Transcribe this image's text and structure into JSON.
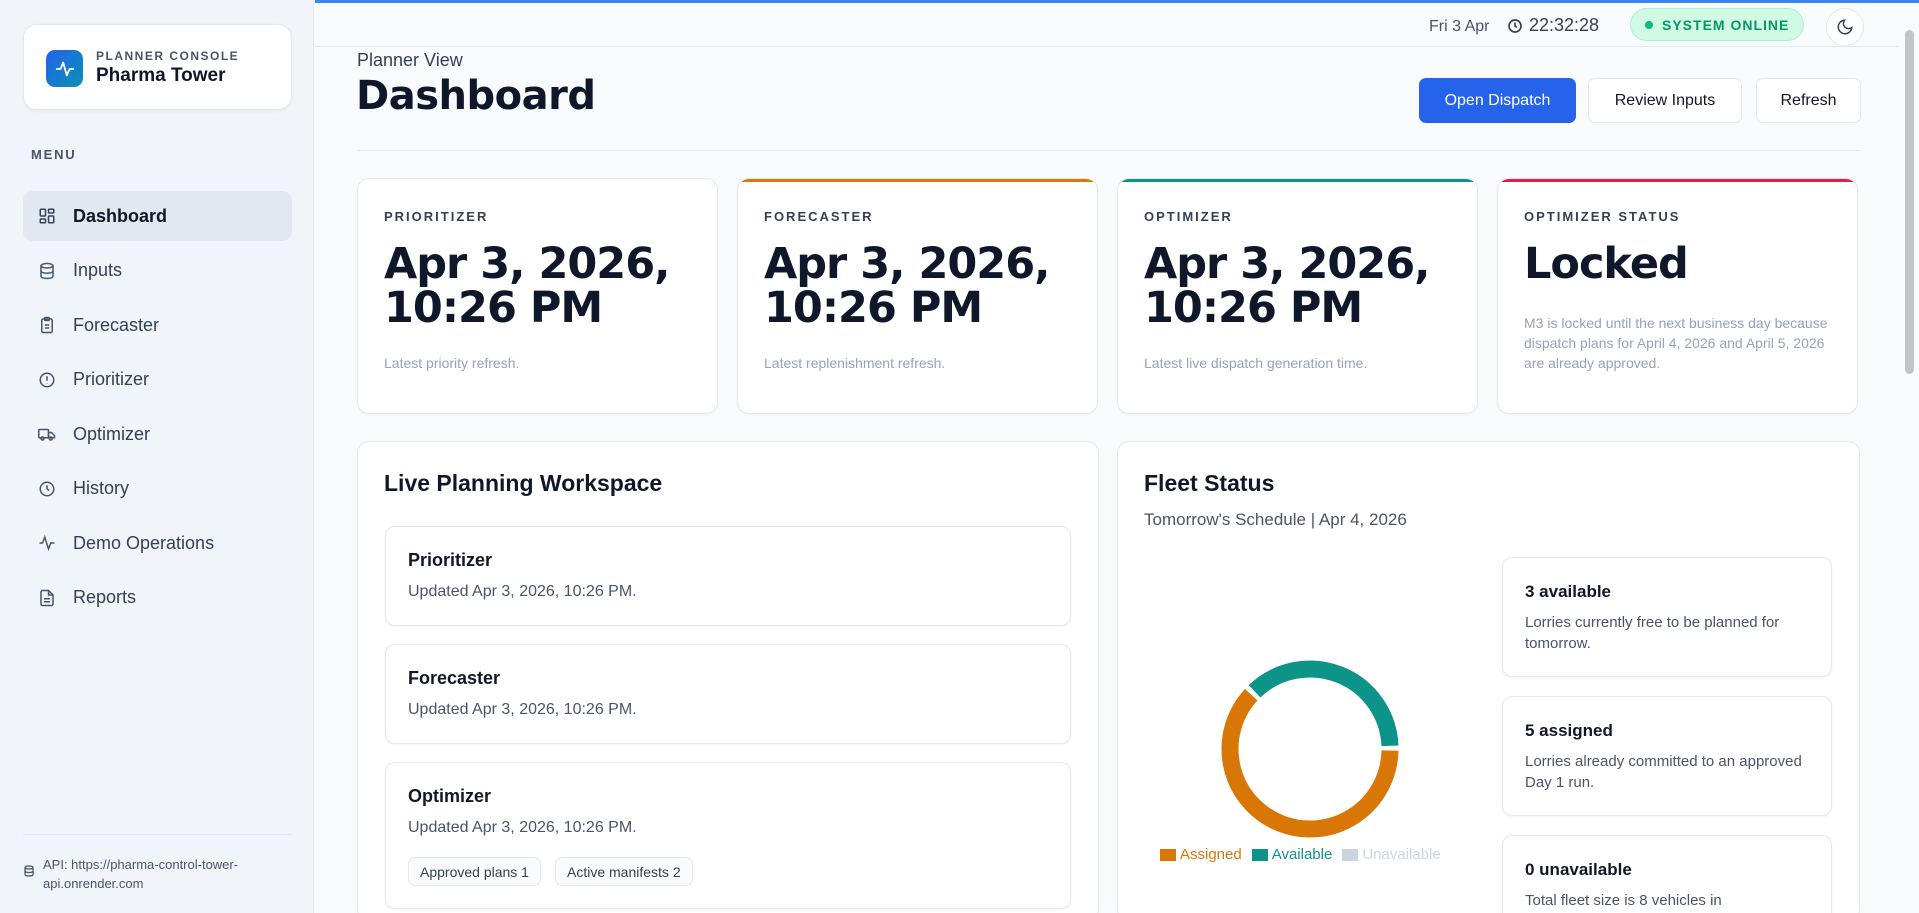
{
  "brand": {
    "kicker": "PLANNER CONSOLE",
    "name": "Pharma Tower"
  },
  "sidebar": {
    "menu_label": "MENU",
    "items": [
      {
        "label": "Dashboard",
        "icon": "grid-icon",
        "active": true
      },
      {
        "label": "Inputs",
        "icon": "database-icon"
      },
      {
        "label": "Forecaster",
        "icon": "clipboard-icon"
      },
      {
        "label": "Prioritizer",
        "icon": "alert-circle-icon"
      },
      {
        "label": "Optimizer",
        "icon": "truck-icon"
      },
      {
        "label": "History",
        "icon": "clock-icon"
      },
      {
        "label": "Demo Operations",
        "icon": "activity-icon"
      },
      {
        "label": "Reports",
        "icon": "file-text-icon"
      }
    ],
    "api": "API: https://pharma-control-tower-api.onrender.com"
  },
  "topbar": {
    "date": "Fri 3 Apr",
    "time": "22:32:28",
    "status": "SYSTEM ONLINE"
  },
  "header": {
    "eyebrow": "Planner View",
    "title": "Dashboard",
    "open_dispatch": "Open Dispatch",
    "review_inputs": "Review Inputs",
    "refresh": "Refresh"
  },
  "kpis": [
    {
      "label": "PRIORITIZER",
      "value": "Apr 3, 2026, 10:26 PM",
      "note": "Latest priority refresh.",
      "accent": ""
    },
    {
      "label": "FORECASTER",
      "value": "Apr 3, 2026, 10:26 PM",
      "note": "Latest replenishment refresh.",
      "accent": "#d97706"
    },
    {
      "label": "OPTIMIZER",
      "value": "Apr 3, 2026, 10:26 PM",
      "note": "Latest live dispatch generation time.",
      "accent": "#0d9488"
    },
    {
      "label": "OPTIMIZER STATUS",
      "value": "Locked",
      "note": "M3 is locked until the next business day because dispatch plans for April 4, 2026 and April 5, 2026 are already approved.",
      "accent": "#e11d48"
    }
  ],
  "workspace": {
    "title": "Live Planning Workspace",
    "items": [
      {
        "title": "Prioritizer",
        "text": "Updated Apr 3, 2026, 10:26 PM."
      },
      {
        "title": "Forecaster",
        "text": "Updated Apr 3, 2026, 10:26 PM."
      },
      {
        "title": "Optimizer",
        "text": "Updated Apr 3, 2026, 10:26 PM.",
        "chips": [
          "Approved plans 1",
          "Active manifests 2"
        ]
      }
    ]
  },
  "fleet": {
    "title": "Fleet Status",
    "subtitle": "Tomorrow's Schedule | Apr 4, 2026",
    "cards": [
      {
        "title": "3 available",
        "text": "Lorries currently free to be planned for tomorrow."
      },
      {
        "title": "5 assigned",
        "text": "Lorries already committed to an approved Day 1 run."
      },
      {
        "title": "0 unavailable",
        "text": "Total fleet size is 8 vehicles in"
      }
    ]
  },
  "colors": {
    "assigned": "#d97706",
    "available": "#0d9488",
    "unavailable": "#cbd5e1",
    "primary": "#2563eb"
  },
  "chart_data": {
    "type": "pie",
    "categories": [
      "Assigned",
      "Available",
      "Unavailable"
    ],
    "values": [
      5,
      3,
      0
    ],
    "legend": "bottom"
  }
}
